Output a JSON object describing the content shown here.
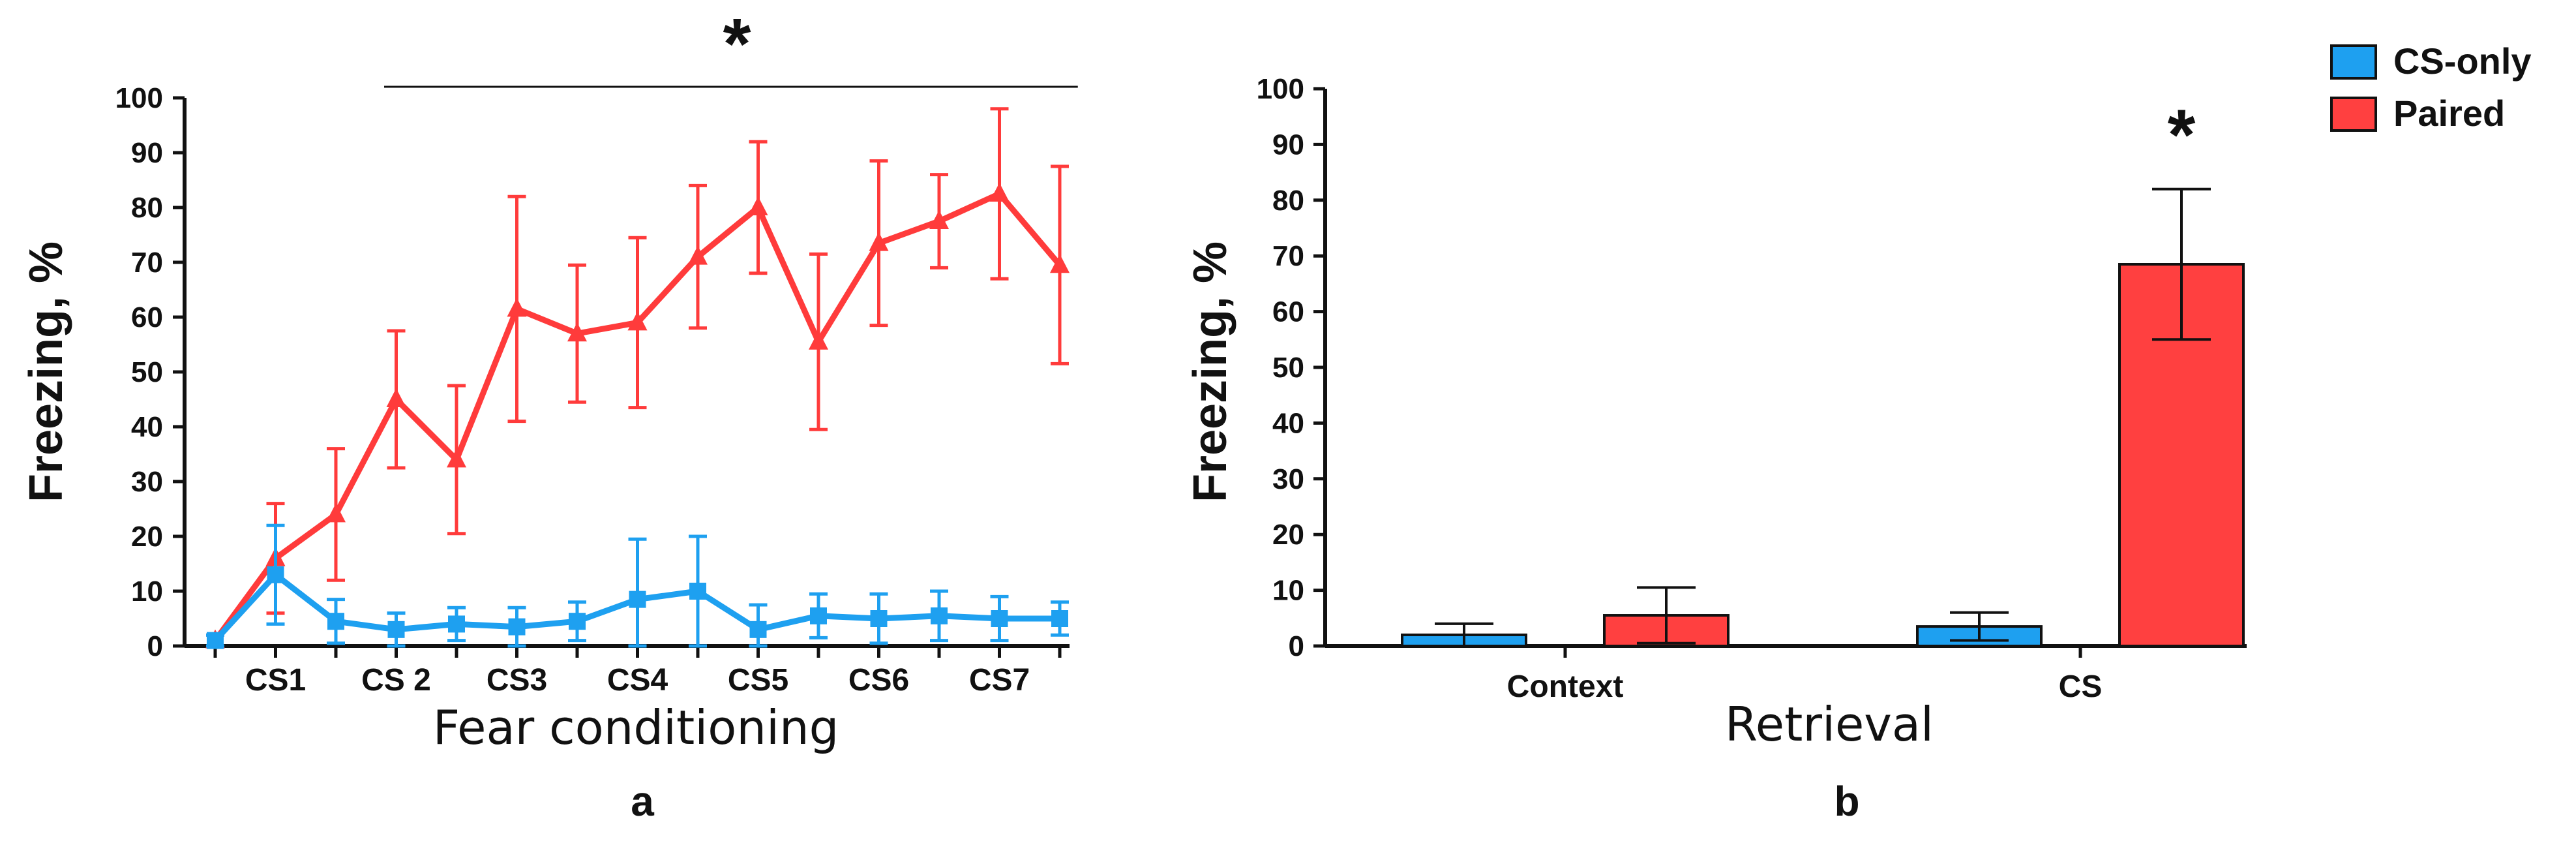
{
  "colors": {
    "cs_only": "#1EA0F0",
    "paired": "#FF3B3B",
    "axis": "#111111"
  },
  "legend": {
    "placement": "top-right",
    "items": [
      {
        "name": "CS-only",
        "color": "#1EA0F0"
      },
      {
        "name": "Paired",
        "color": "#FF4040"
      }
    ]
  },
  "chart_data": [
    {
      "type": "line",
      "panel_label": "a",
      "xlabel": "Fear conditioning",
      "ylabel": "Freezing, %",
      "ylim": [
        0,
        100
      ],
      "yticks": [
        "0",
        "10",
        "20",
        "30",
        "40",
        "50",
        "60",
        "70",
        "80",
        "90",
        "100"
      ],
      "x": [
        0,
        1,
        2,
        3,
        4,
        5,
        6,
        7,
        8,
        9,
        10,
        11,
        12,
        13,
        14
      ],
      "xtick_labels": [
        {
          "x": 1,
          "label": "CS1"
        },
        {
          "x": 3,
          "label": "CS 2"
        },
        {
          "x": 5,
          "label": "CS3"
        },
        {
          "x": 7,
          "label": "CS4"
        },
        {
          "x": 9,
          "label": "CS5"
        },
        {
          "x": 11,
          "label": "CS6"
        },
        {
          "x": 13,
          "label": "CS7"
        }
      ],
      "series": [
        {
          "name": "CS-only",
          "marker": "square",
          "values": [
            1,
            13,
            4.5,
            3,
            4,
            3.5,
            4.5,
            8.5,
            10,
            3,
            5.5,
            5,
            5.5,
            5,
            5
          ],
          "errors": [
            1,
            9,
            4,
            3,
            3,
            3.5,
            3.5,
            11,
            10,
            4.5,
            4,
            4.5,
            4.5,
            4,
            3
          ]
        },
        {
          "name": "Paired",
          "marker": "triangle",
          "values": [
            1,
            16,
            24,
            45,
            34,
            61.5,
            57,
            59,
            71,
            80,
            55.5,
            73.5,
            77.5,
            82.5,
            69.5
          ],
          "errors": [
            1,
            10,
            12,
            12.5,
            13.5,
            20.5,
            12.5,
            15.5,
            13,
            12,
            16,
            15,
            8.5,
            15.5,
            18
          ]
        }
      ],
      "annotation": {
        "text": "*",
        "span_from_x": 2.8,
        "span_to_x": 14.3
      }
    },
    {
      "type": "bar",
      "panel_label": "b",
      "xlabel": "Retrieval",
      "ylabel": "Freezing, %",
      "ylim": [
        0,
        100
      ],
      "yticks": [
        "0",
        "10",
        "20",
        "30",
        "40",
        "50",
        "60",
        "70",
        "80",
        "90",
        "100"
      ],
      "categories": [
        "Context",
        "CS"
      ],
      "series": [
        {
          "name": "CS-only",
          "values": [
            2,
            3.5
          ],
          "errors": [
            2,
            2.5
          ]
        },
        {
          "name": "Paired",
          "values": [
            5.5,
            68.5
          ],
          "errors": [
            5,
            13.5
          ]
        }
      ],
      "annotation": {
        "text": "*",
        "category": "CS",
        "series": "Paired"
      }
    }
  ]
}
